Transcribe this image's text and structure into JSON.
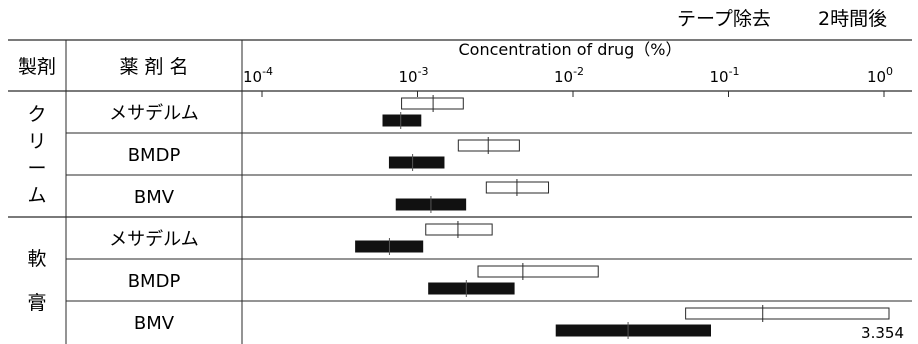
{
  "chart_data": {
    "type": "range-bar",
    "top_note_left": "テープ除去",
    "top_note_right": "2時間後",
    "headers": {
      "formulation": "製剤",
      "drug_name": "薬 剤 名",
      "axis_title": "Concentration of drug（%）"
    },
    "x_axis": {
      "scale": "log",
      "range": [
        0.0001,
        1
      ],
      "tick_base": "10",
      "tick_exponents": [
        "-4",
        "-3",
        "-2",
        "-1",
        "0"
      ],
      "tick_values": [
        0.0001,
        0.001,
        0.01,
        0.1,
        1
      ]
    },
    "groups": [
      {
        "label": "クリーム",
        "rows": [
          "メサデルム",
          "BMDP",
          "BMV"
        ]
      },
      {
        "label": "軟膏",
        "rows": [
          "メサデルム",
          "BMDP",
          "BMV"
        ]
      }
    ],
    "legend": {
      "open_bar": "テープ除去",
      "filled_bar": "2時間後"
    },
    "series": [
      {
        "name": "テープ除去",
        "fill": "open",
        "data": [
          {
            "group": "クリーム",
            "drug": "メサデルム",
            "low": 0.00079,
            "mid": 0.00126,
            "high": 0.00197
          },
          {
            "group": "クリーム",
            "drug": "BMDP",
            "low": 0.00183,
            "mid": 0.00285,
            "high": 0.00452
          },
          {
            "group": "クリーム",
            "drug": "BMV",
            "low": 0.00277,
            "mid": 0.00436,
            "high": 0.00696
          },
          {
            "group": "軟膏",
            "drug": "メサデルム",
            "low": 0.00113,
            "mid": 0.00182,
            "high": 0.00302
          },
          {
            "group": "軟膏",
            "drug": "BMDP",
            "low": 0.00245,
            "mid": 0.00476,
            "high": 0.01453
          },
          {
            "group": "軟膏",
            "drug": "BMV",
            "low": 0.053,
            "mid": 0.166,
            "high": 1.14
          }
        ]
      },
      {
        "name": "2時間後",
        "fill": "solid",
        "data": [
          {
            "group": "クリーム",
            "drug": "メサデルム",
            "low": 0.0006,
            "mid": 0.00078,
            "high": 0.00105
          },
          {
            "group": "クリーム",
            "drug": "BMDP",
            "low": 0.00066,
            "mid": 0.00093,
            "high": 0.00148
          },
          {
            "group": "クリーム",
            "drug": "BMV",
            "low": 0.00073,
            "mid": 0.00122,
            "high": 0.00204
          },
          {
            "group": "軟膏",
            "drug": "メサデルム",
            "low": 0.0004,
            "mid": 0.00066,
            "high": 0.00108
          },
          {
            "group": "軟膏",
            "drug": "BMDP",
            "low": 0.00118,
            "mid": 0.00206,
            "high": 0.00418
          },
          {
            "group": "軟膏",
            "drug": "BMV",
            "low": 0.0078,
            "mid": 0.0226,
            "high": 0.0766
          }
        ]
      }
    ],
    "annotation": "3.354",
    "colors": {
      "line": "#2a2a2a",
      "bar_fill": "#111111",
      "background": "#ffffff"
    }
  }
}
